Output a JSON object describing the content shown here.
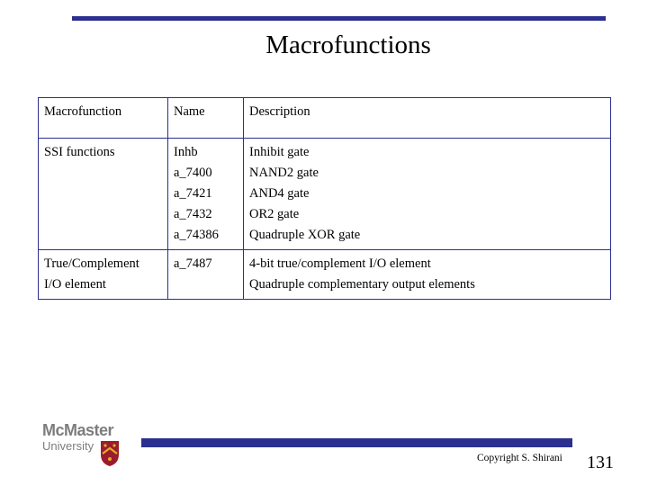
{
  "slide": {
    "title": "Macrofunctions",
    "copyright": "Copyright S. Shirani",
    "page_number": "131"
  },
  "logo": {
    "name_line1": "McMaster",
    "name_line2": "University",
    "crest_color": "#9b1c2e",
    "crest_gold": "#e0b020"
  },
  "table": {
    "headers": [
      "Macrofunction",
      "Name",
      "Description"
    ],
    "rows": [
      {
        "macrofunction": [
          "SSI functions"
        ],
        "names": [
          "Inhb",
          "a_7400",
          "a_7421",
          "a_7432",
          "a_74386"
        ],
        "descriptions": [
          "Inhibit gate",
          "NAND2 gate",
          "AND4 gate",
          "OR2 gate",
          "Quadruple XOR gate"
        ]
      },
      {
        "macrofunction": [
          "True/Complement",
          "I/O element"
        ],
        "names": [
          "a_7487"
        ],
        "descriptions": [
          "4-bit true/complement I/O element",
          "Quadruple complementary output elements"
        ]
      }
    ]
  },
  "colors": {
    "accent": "#2b2f8f"
  }
}
